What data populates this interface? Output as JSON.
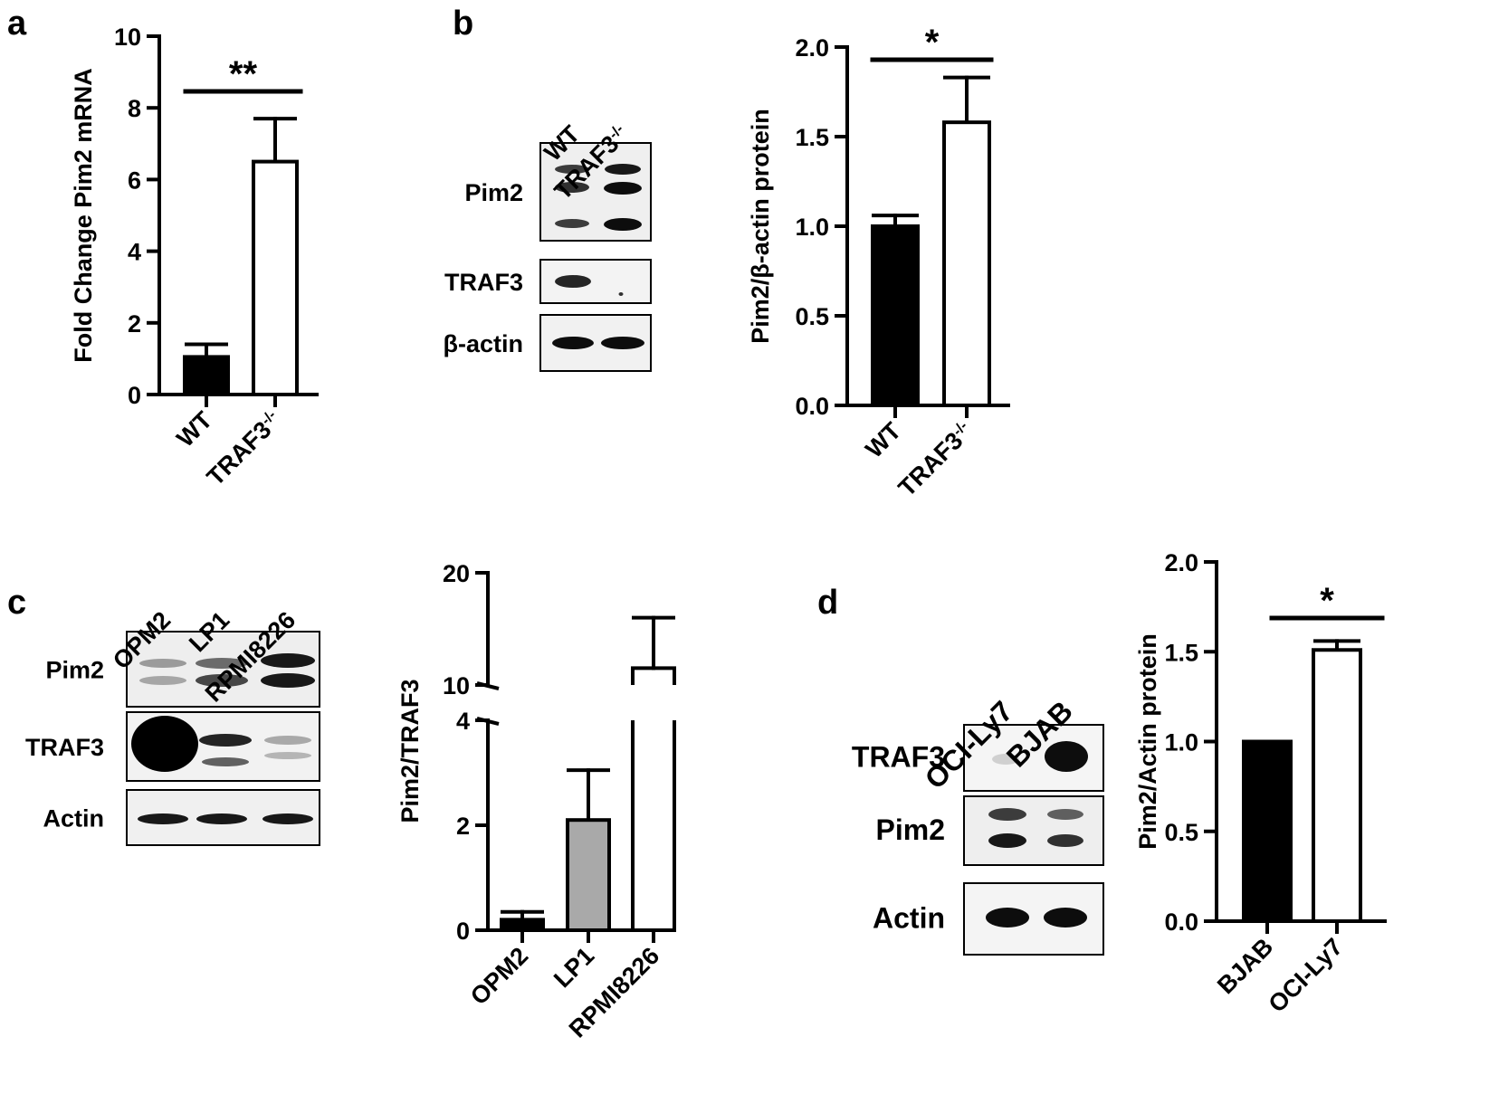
{
  "panel_letters": [
    "a",
    "b",
    "c",
    "d"
  ],
  "blots": [
    {
      "lanes": [
        "WT",
        "TRAF3-/-"
      ],
      "rows": [
        {
          "label": "Pim2",
          "pattern": "triple"
        },
        {
          "label": "TRAF3",
          "pattern": "single-loss"
        },
        {
          "label": "β-actin",
          "pattern": "loading"
        }
      ]
    },
    {
      "lanes": [
        "OPM2",
        "LP1",
        "RPMI8226"
      ],
      "rows": [
        {
          "label": "Pim2",
          "pattern": "double-increasing"
        },
        {
          "label": "TRAF3",
          "pattern": "decreasing"
        },
        {
          "label": "Actin",
          "pattern": "loading"
        }
      ]
    },
    {
      "lanes": [
        "OCI-Ly7",
        "BJAB"
      ],
      "rows": [
        {
          "label": "TRAF3",
          "pattern": "single-gain"
        },
        {
          "label": "Pim2",
          "pattern": "double-equal"
        },
        {
          "label": "Actin",
          "pattern": "loading"
        }
      ]
    }
  ],
  "chart_data": [
    {
      "panel": "a",
      "type": "bar",
      "categories": [
        "WT",
        "TRAF3-/-"
      ],
      "values": [
        1.05,
        6.5
      ],
      "errors": [
        0.35,
        1.2
      ],
      "fills": [
        "#000000",
        "#ffffff"
      ],
      "ylabel": "Fold Change Pim2 mRNA",
      "ylim": [
        0,
        10
      ],
      "yticks": [
        0,
        2,
        4,
        6,
        8,
        10
      ],
      "significance": "**"
    },
    {
      "panel": "b",
      "type": "bar",
      "categories": [
        "WT",
        "TRAF3-/-"
      ],
      "values": [
        1.0,
        1.58
      ],
      "errors": [
        0.06,
        0.25
      ],
      "fills": [
        "#000000",
        "#ffffff"
      ],
      "ylabel": "Pim2/β-actin protein",
      "ylim": [
        0,
        2.0
      ],
      "yticks": [
        "0.0",
        "0.5",
        "1.0",
        "1.5",
        "2.0"
      ],
      "significance": "*"
    },
    {
      "panel": "c",
      "type": "bar",
      "categories": [
        "OPM2",
        "LP1",
        "RPMI8226"
      ],
      "values": [
        0.2,
        2.1,
        11.5
      ],
      "errors": [
        0.15,
        0.95,
        4.5
      ],
      "fills": [
        "#000000",
        "#a9a9a9",
        "#ffffff"
      ],
      "ylabel": "Pim2/TRAF3",
      "broken_axis": {
        "lower": [
          0,
          4
        ],
        "upper": [
          10,
          20
        ]
      },
      "yticks": [
        0,
        2,
        4,
        10,
        20
      ]
    },
    {
      "panel": "d",
      "type": "bar",
      "categories": [
        "BJAB",
        "OCI-Ly7"
      ],
      "values": [
        1.0,
        1.51
      ],
      "errors": [
        0.0,
        0.05
      ],
      "fills": [
        "#000000",
        "#ffffff"
      ],
      "ylabel": "Pim2/Actin protein",
      "ylim": [
        0,
        2.0
      ],
      "yticks": [
        "0.0",
        "0.5",
        "1.0",
        "1.5",
        "2.0"
      ],
      "significance": "*"
    }
  ]
}
